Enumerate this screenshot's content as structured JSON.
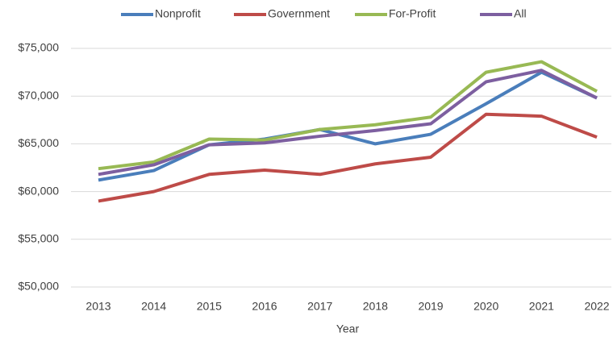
{
  "chart_data": {
    "type": "line",
    "x_label": "Year",
    "categories": [
      "2013",
      "2014",
      "2015",
      "2016",
      "2017",
      "2018",
      "2019",
      "2020",
      "2021",
      "2022"
    ],
    "series": [
      {
        "name": "Nonprofit",
        "color": "#4a7ebb",
        "values": [
          61200,
          62200,
          64900,
          65500,
          66500,
          65000,
          66000,
          69200,
          72500,
          69800
        ]
      },
      {
        "name": "Government",
        "color": "#be4b48",
        "values": [
          59000,
          60000,
          61800,
          62250,
          61800,
          62900,
          63600,
          68100,
          67900,
          65700
        ]
      },
      {
        "name": "For-Profit",
        "color": "#98b954",
        "values": [
          62400,
          63100,
          65500,
          65400,
          66500,
          67000,
          67800,
          72500,
          73600,
          70500
        ]
      },
      {
        "name": "All",
        "color": "#7d5fa0",
        "values": [
          61800,
          62800,
          64900,
          65100,
          65800,
          66400,
          67100,
          71500,
          72700,
          69800
        ]
      }
    ],
    "ylim": [
      50000,
      75000
    ],
    "yticks": [
      {
        "value": 50000,
        "label": "$50,000"
      },
      {
        "value": 55000,
        "label": "$55,000"
      },
      {
        "value": 60000,
        "label": "$60,000"
      },
      {
        "value": 65000,
        "label": "$65,000"
      },
      {
        "value": 70000,
        "label": "$70,000"
      },
      {
        "value": 75000,
        "label": "$75,000"
      }
    ],
    "grid": true,
    "legend": "top"
  }
}
